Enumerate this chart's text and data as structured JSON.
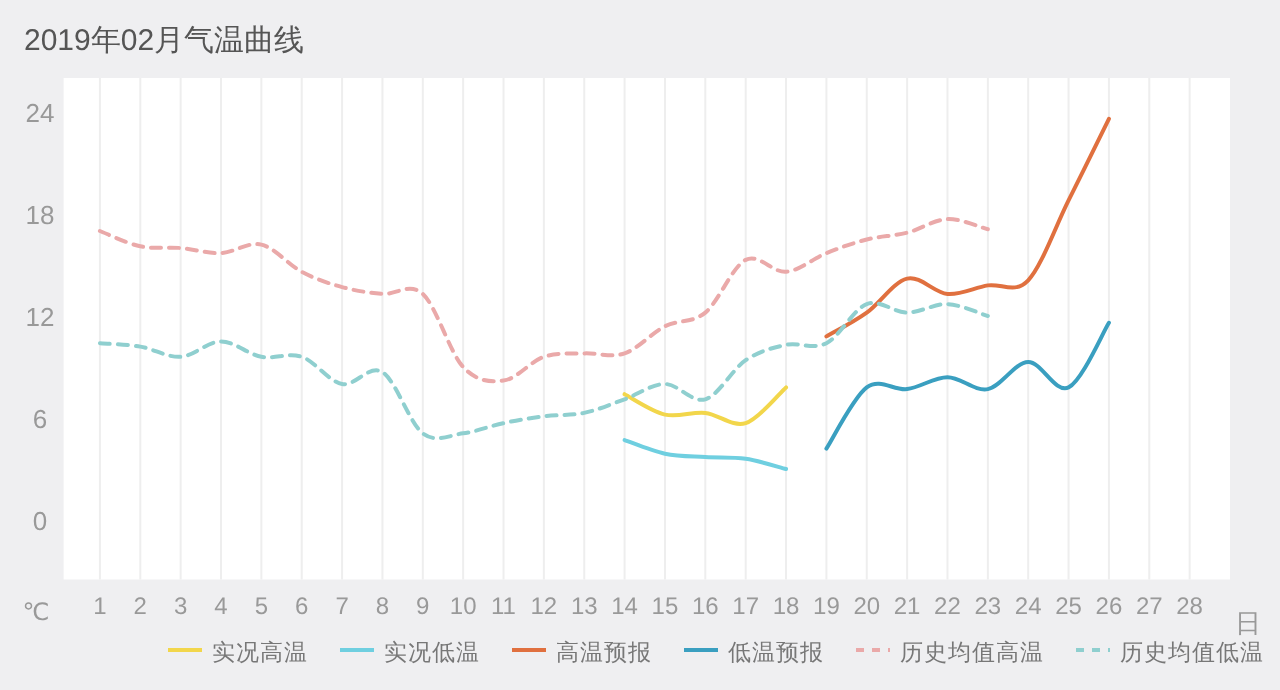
{
  "chart_data": {
    "type": "line",
    "title": "2019年02月气温曲线",
    "xlabel": "日",
    "ylabel": "℃",
    "xlim": [
      0.1,
      29
    ],
    "ylim": [
      -3.5,
      26
    ],
    "xticks": [
      1,
      2,
      3,
      4,
      5,
      6,
      7,
      8,
      9,
      10,
      11,
      12,
      13,
      14,
      15,
      16,
      17,
      18,
      19,
      20,
      21,
      22,
      23,
      24,
      25,
      26,
      27,
      28
    ],
    "yticks": [
      0,
      6,
      12,
      18,
      24
    ],
    "grid": "x",
    "legend": "bottom",
    "marker": "none",
    "series": [
      {
        "name": "实况高温",
        "color": "#f2d64b",
        "line_style": "solid",
        "x": [
          14,
          15,
          16,
          17,
          18
        ],
        "values": [
          7.4,
          6.2,
          6.3,
          5.7,
          7.8
        ]
      },
      {
        "name": "实况低温",
        "color": "#6fcfe0",
        "line_style": "solid",
        "x": [
          14,
          15,
          16,
          17,
          18
        ],
        "values": [
          4.7,
          3.9,
          3.7,
          3.6,
          3.0
        ]
      },
      {
        "name": "高温预报",
        "color": "#e0703f",
        "line_style": "solid",
        "x": [
          19,
          20,
          21,
          22,
          23,
          24,
          25,
          26
        ],
        "values": [
          10.8,
          12.2,
          14.2,
          13.3,
          13.8,
          14.1,
          18.8,
          23.6
        ]
      },
      {
        "name": "低温预报",
        "color": "#3a9fc0",
        "line_style": "solid",
        "x": [
          19,
          20,
          21,
          22,
          23,
          24,
          25,
          26
        ],
        "values": [
          4.2,
          7.8,
          7.7,
          8.4,
          7.7,
          9.3,
          7.8,
          11.6
        ]
      },
      {
        "name": "历史均值高温",
        "color": "#eaa9a9",
        "line_style": "dashed",
        "x": [
          1,
          2,
          3,
          4,
          5,
          6,
          7,
          8,
          9,
          10,
          11,
          12,
          13,
          14,
          15,
          16,
          17,
          18,
          19,
          20,
          21,
          22,
          23
        ],
        "values": [
          17.0,
          16.1,
          16.0,
          15.7,
          16.2,
          14.6,
          13.7,
          13.3,
          13.3,
          9.0,
          8.2,
          9.6,
          9.8,
          9.8,
          11.4,
          12.2,
          15.3,
          14.6,
          15.7,
          16.5,
          16.9,
          17.7,
          17.1
        ]
      },
      {
        "name": "历史均值低温",
        "color": "#8fcfcf",
        "line_style": "dashed",
        "x": [
          1,
          2,
          3,
          4,
          5,
          6,
          7,
          8,
          9,
          10,
          11,
          12,
          13,
          14,
          15,
          16,
          17,
          18,
          19,
          20,
          21,
          22,
          23
        ],
        "values": [
          10.4,
          10.2,
          9.6,
          10.5,
          9.6,
          9.6,
          8.0,
          8.7,
          5.1,
          5.1,
          5.7,
          6.1,
          6.3,
          7.1,
          8.0,
          7.1,
          9.4,
          10.3,
          10.4,
          12.7,
          12.2,
          12.7,
          12.0
        ]
      }
    ]
  }
}
